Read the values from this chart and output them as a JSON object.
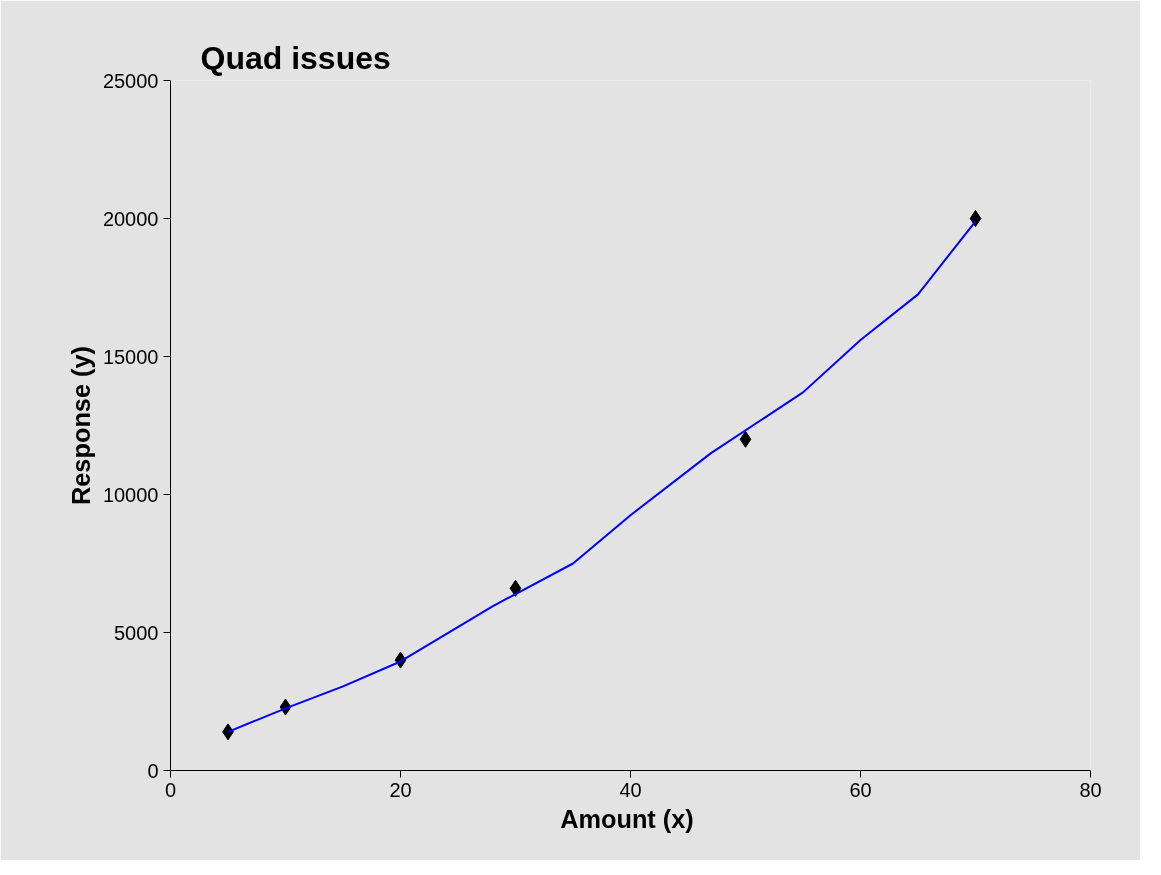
{
  "chart_data": {
    "type": "scatter",
    "title": "Quad issues",
    "xlabel": "Amount  (x)",
    "ylabel": "Response (y)",
    "xlim": [
      0,
      80
    ],
    "xticks": [
      0,
      20,
      40,
      60,
      80
    ],
    "ylim": [
      0,
      25000
    ],
    "yticks": [
      0,
      5000,
      10000,
      15000,
      20000,
      25000
    ],
    "grid": false,
    "marker": "diamond",
    "series": [
      {
        "color": "#000000",
        "x": [
          5,
          10,
          20,
          30,
          50,
          70
        ],
        "values": [
          1400,
          2300,
          4000,
          6600,
          12000,
          20000
        ]
      },
      {
        "type": "line",
        "color": "#0000ff",
        "marker": "none",
        "x": [
          5,
          10,
          15,
          20,
          28,
          35,
          40,
          47,
          55,
          60,
          65,
          70
        ],
        "values": [
          1400,
          2250,
          3050,
          3950,
          5950,
          7500,
          9250,
          11500,
          13700,
          15600,
          17250,
          19900
        ]
      }
    ]
  }
}
